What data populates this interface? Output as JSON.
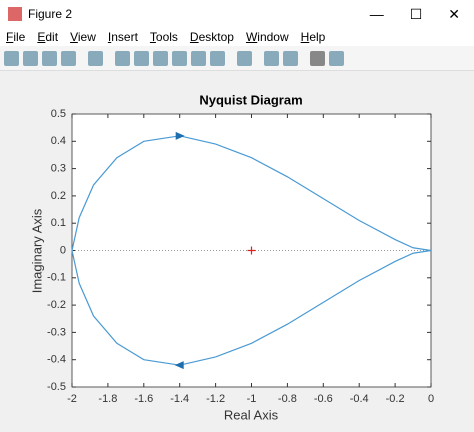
{
  "window": {
    "title": "Figure 2",
    "menu": [
      "File",
      "Edit",
      "View",
      "Insert",
      "Tools",
      "Desktop",
      "Window",
      "Help"
    ]
  },
  "chart_data": {
    "type": "line",
    "title": "Nyquist Diagram",
    "x_label": "Real Axis",
    "y_label": "Imaginary Axis",
    "series": [
      {
        "color": "#4a9ad4",
        "x": [
          0,
          -0.1,
          -0.2,
          -0.4,
          -0.6,
          -0.8,
          -1.0,
          -1.2,
          -1.4,
          -1.6,
          -1.75,
          -1.88,
          -1.96,
          -2,
          -1.96,
          -1.88,
          -1.75,
          -1.6,
          -1.4,
          -1.2,
          -1.0,
          -0.8,
          -0.6,
          -0.4,
          -0.2,
          -0.1,
          0
        ],
        "values": [
          0,
          0.01,
          0.04,
          0.11,
          0.19,
          0.27,
          0.34,
          0.39,
          0.42,
          0.4,
          0.34,
          0.24,
          0.12,
          0,
          -0.12,
          -0.24,
          -0.34,
          -0.4,
          -0.42,
          -0.39,
          -0.34,
          -0.27,
          -0.19,
          -0.11,
          -0.04,
          -0.01,
          0
        ]
      }
    ],
    "marker_point": {
      "x": -1,
      "y": 0,
      "color": "#e0201a"
    },
    "xlim": [
      -2,
      0
    ],
    "ylim": [
      -0.5,
      0.5
    ],
    "xticks": [
      -2,
      -1.8,
      -1.6,
      -1.4,
      -1.2,
      -1,
      -0.8,
      -0.6,
      -0.4,
      -0.2,
      0
    ],
    "yticks": [
      -0.5,
      -0.4,
      -0.3,
      -0.2,
      -0.1,
      0,
      0.1,
      0.2,
      0.3,
      0.4,
      0.5
    ]
  }
}
